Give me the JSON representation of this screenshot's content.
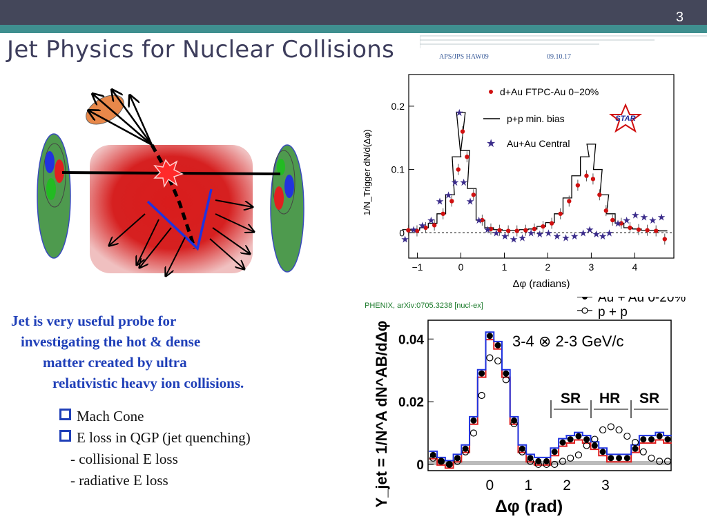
{
  "slide": {
    "number": "3",
    "title": "Jet Physics for Nuclear Collisions",
    "footer_left": "APS/JPS  HAW09",
    "footer_date": "09.10.17"
  },
  "lead_text": [
    "Jet is very useful probe for",
    "investigating the hot & dense",
    "matter  created  by ultra",
    "relativistic heavy ion collisions."
  ],
  "bullets": [
    "Mach Cone",
    "E loss in QGP (jet quenching)"
  ],
  "sub_items": [
    "- collisional E loss",
    "- radiative E loss"
  ],
  "colors": {
    "title": "#3d3d5c",
    "lead": "#1f3fb8",
    "topbar": "#44475a",
    "teal": "#3f8f8f"
  },
  "icons": [
    "square-bullet-icon",
    "star-logo-icon"
  ],
  "chart_data": [
    {
      "type": "scatter",
      "ylabel": "1/N_Trigger dN/d(Δφ)",
      "xlabel": "Δφ (radians)",
      "xlim": [
        -1.2,
        4.9
      ],
      "ylim": [
        -0.04,
        0.25
      ],
      "xticks": [
        "−1",
        "0",
        "1",
        "2",
        "3",
        "4"
      ],
      "yticks": [
        "0",
        "0.1",
        "0.2"
      ],
      "logo": "STAR",
      "legend": [
        "d+Au FTPC-Au 0−20%",
        "p+p min. bias",
        "Au+Au Central"
      ],
      "x": [
        -1.25,
        -1.05,
        -0.85,
        -0.65,
        -0.45,
        -0.25,
        -0.1,
        0.0,
        0.1,
        0.25,
        0.45,
        0.65,
        0.85,
        1.05,
        1.25,
        1.45,
        1.65,
        1.85,
        2.05,
        2.25,
        2.45,
        2.65,
        2.85,
        3.0,
        3.15,
        3.3,
        3.45,
        3.65,
        3.85,
        4.05,
        4.25,
        4.45,
        4.65
      ],
      "series": [
        {
          "name": "d+Au FTPC-Au 0−20%",
          "values": [
            0.004,
            0.003,
            0.008,
            0.012,
            0.03,
            0.05,
            0.1,
            0.16,
            0.12,
            0.06,
            0.02,
            0.006,
            0.004,
            0.003,
            0.003,
            0.004,
            0.006,
            0.01,
            0.015,
            0.03,
            0.05,
            0.075,
            0.09,
            0.085,
            0.06,
            0.035,
            0.02,
            0.015,
            0.008,
            0.005,
            0.004,
            0.003,
            -0.01
          ]
        },
        {
          "name": "p+p min. bias",
          "values": [
            0.005,
            0.004,
            0.008,
            0.015,
            0.03,
            0.06,
            0.12,
            0.19,
            0.13,
            0.07,
            0.02,
            0.008,
            0.005,
            0.004,
            0.004,
            0.005,
            0.006,
            0.01,
            0.016,
            0.03,
            0.055,
            0.09,
            0.12,
            0.14,
            0.1,
            0.06,
            0.03,
            0.015,
            0.008,
            0.006,
            0.004,
            0.004,
            0.003
          ]
        },
        {
          "name": "Au+Au Central",
          "values": [
            -0.01,
            0.005,
            0.012,
            0.02,
            0.05,
            0.06,
            0.08,
            0.19,
            0.08,
            0.05,
            0.02,
            0.005,
            0.0,
            -0.005,
            -0.01,
            -0.008,
            0.0,
            -0.002,
            0.0,
            -0.005,
            -0.008,
            -0.005,
            0.0,
            0.005,
            -0.002,
            -0.005,
            0.0,
            0.015,
            0.02,
            0.028,
            0.025,
            0.02,
            0.025
          ]
        }
      ]
    },
    {
      "type": "line",
      "ylabel": "Y_jet = 1/N^A dN^AB/dΔφ",
      "xlabel": "Δφ (rad)",
      "xlim": [
        -1.6,
        4.7
      ],
      "ylim": [
        -0.002,
        0.046
      ],
      "xticks": [
        "0",
        "1",
        "2",
        "3"
      ],
      "yticks": [
        "0",
        "0.02",
        "0.04"
      ],
      "label": "3-4 ⊗ 2-3 GeV/c",
      "citation": "PHENIX,  arXiv:0705.3238 [nucl-ex]",
      "regions": [
        "SR",
        "HR",
        "SR"
      ],
      "legend": [
        "Au + Au 0-20%",
        "p + p"
      ],
      "x": [
        -1.47,
        -1.26,
        -1.05,
        -0.84,
        -0.63,
        -0.42,
        -0.21,
        0.0,
        0.21,
        0.42,
        0.63,
        0.84,
        1.05,
        1.26,
        1.47,
        1.68,
        1.89,
        2.09,
        2.3,
        2.51,
        2.72,
        2.93,
        3.14,
        3.35,
        3.56,
        3.77,
        3.98,
        4.19,
        4.4,
        4.61
      ],
      "series": [
        {
          "name": "Au + Au 0-20%",
          "values": [
            0.003,
            0.001,
            0.0,
            0.002,
            0.005,
            0.014,
            0.029,
            0.041,
            0.038,
            0.029,
            0.014,
            0.005,
            0.002,
            0.001,
            0.001,
            0.004,
            0.007,
            0.008,
            0.009,
            0.008,
            0.006,
            0.004,
            0.002,
            0.002,
            0.002,
            0.005,
            0.008,
            0.008,
            0.009,
            0.008
          ]
        },
        {
          "name": "p + p",
          "values": [
            0.002,
            0.001,
            0.0,
            0.001,
            0.004,
            0.01,
            0.022,
            0.034,
            0.033,
            0.027,
            0.013,
            0.004,
            0.001,
            0.0,
            0.0,
            0.0,
            0.001,
            0.002,
            0.003,
            0.006,
            0.008,
            0.011,
            0.012,
            0.011,
            0.009,
            0.007,
            0.004,
            0.002,
            0.001,
            0.001
          ]
        }
      ]
    }
  ]
}
